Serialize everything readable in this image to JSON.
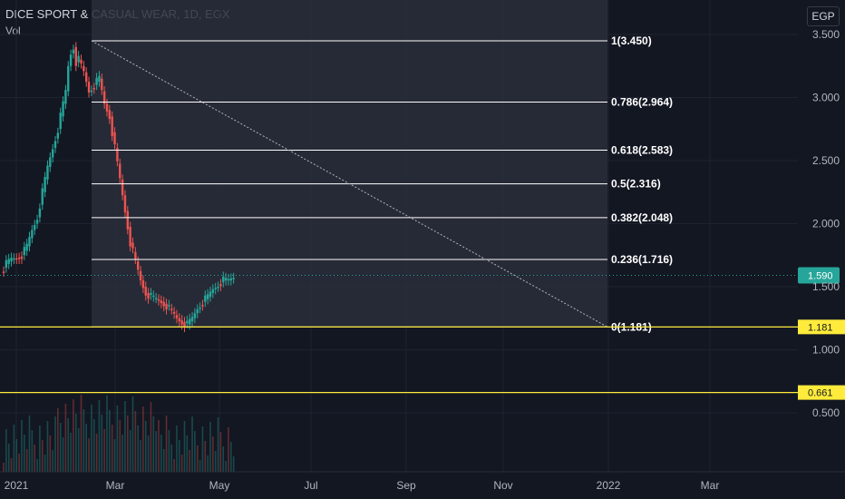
{
  "header": {
    "title": "DICE SPORT & CASUAL WEAR, 1D, EGX",
    "volume_label": "Vol"
  },
  "currency": "EGP",
  "colors": {
    "up": "#26a69a",
    "down": "#ef5350",
    "bg": "#131722",
    "grid": "#1f2330",
    "fib_box": "#2a2e39",
    "fib_line": "#ffffff",
    "hline": "#ffeb3b",
    "last_price_bg": "#26a69a"
  },
  "chart_data": {
    "type": "candlestick",
    "x_ticks": [
      "2021",
      "Mar",
      "May",
      "Jul",
      "Sep",
      "Nov",
      "2022",
      "Mar"
    ],
    "y_ticks": [
      "3.500",
      "3.000",
      "2.500",
      "2.000",
      "1.500",
      "1.000",
      "0.500"
    ],
    "y_tick_values": [
      3.5,
      3.0,
      2.5,
      2.0,
      1.5,
      1.0,
      0.5
    ],
    "last_price": {
      "value": 1.59,
      "label": "1.590"
    },
    "horizontal_lines": [
      {
        "value": 1.181,
        "label": "1.181"
      },
      {
        "value": 0.661,
        "label": "0.661"
      }
    ],
    "fibonacci": {
      "levels": [
        {
          "ratio": 1,
          "price": 3.45,
          "label": "1(3.450)"
        },
        {
          "ratio": 0.786,
          "price": 2.964,
          "label": "0.786(2.964)"
        },
        {
          "ratio": 0.618,
          "price": 2.583,
          "label": "0.618(2.583)"
        },
        {
          "ratio": 0.5,
          "price": 2.316,
          "label": "0.5(2.316)"
        },
        {
          "ratio": 0.382,
          "price": 2.048,
          "label": "0.382(2.048)"
        },
        {
          "ratio": 0.236,
          "price": 1.716,
          "label": "0.236(1.716)"
        },
        {
          "ratio": 0,
          "price": 1.181,
          "label": "0(1.181)"
        }
      ]
    },
    "price_path": [
      [
        0,
        1.62
      ],
      [
        2,
        1.68
      ],
      [
        4,
        1.72
      ],
      [
        6,
        1.73
      ],
      [
        8,
        1.75
      ],
      [
        10,
        1.82
      ],
      [
        12,
        1.95
      ],
      [
        14,
        2.05
      ],
      [
        16,
        2.25
      ],
      [
        18,
        2.45
      ],
      [
        20,
        2.6
      ],
      [
        22,
        2.75
      ],
      [
        24,
        2.95
      ],
      [
        25,
        3.05
      ],
      [
        26,
        3.25
      ],
      [
        27,
        3.35
      ],
      [
        28,
        3.4
      ],
      [
        29,
        3.28
      ],
      [
        30,
        3.3
      ],
      [
        32,
        3.2
      ],
      [
        34,
        3.05
      ],
      [
        36,
        3.1
      ],
      [
        38,
        3.15
      ],
      [
        40,
        2.95
      ],
      [
        42,
        2.85
      ],
      [
        44,
        2.6
      ],
      [
        46,
        2.35
      ],
      [
        48,
        2.1
      ],
      [
        50,
        1.85
      ],
      [
        52,
        1.7
      ],
      [
        54,
        1.55
      ],
      [
        56,
        1.45
      ],
      [
        58,
        1.42
      ],
      [
        60,
        1.4
      ],
      [
        62,
        1.38
      ],
      [
        64,
        1.35
      ],
      [
        66,
        1.3
      ],
      [
        68,
        1.25
      ],
      [
        70,
        1.22
      ],
      [
        72,
        1.2
      ],
      [
        74,
        1.25
      ],
      [
        76,
        1.33
      ],
      [
        78,
        1.38
      ],
      [
        80,
        1.42
      ],
      [
        82,
        1.48
      ],
      [
        84,
        1.52
      ],
      [
        86,
        1.55
      ],
      [
        88,
        1.55
      ],
      [
        90,
        1.58
      ]
    ]
  }
}
